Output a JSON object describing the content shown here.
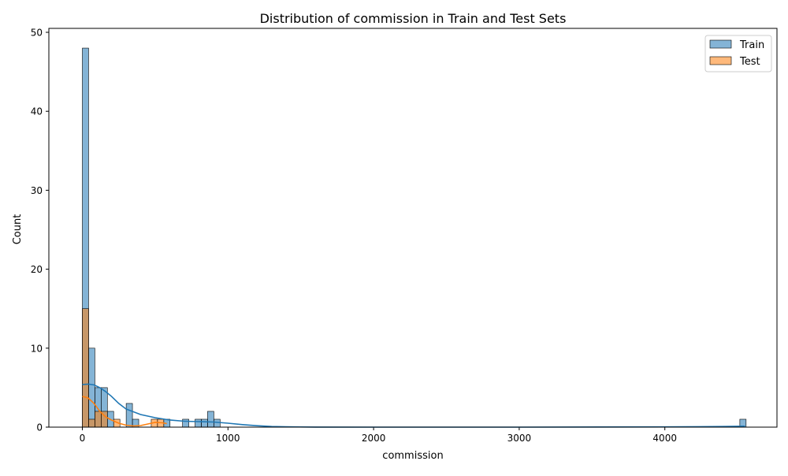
{
  "chart_data": {
    "type": "histogram",
    "title": "Distribution of commission in Train and Test Sets",
    "xlabel": "commission",
    "ylabel": "Count",
    "xlim": [
      -230,
      4770
    ],
    "ylim": [
      0,
      50.5
    ],
    "x_ticks": [
      0,
      1000,
      2000,
      3000,
      4000
    ],
    "y_ticks": [
      0,
      10,
      20,
      30,
      40,
      50
    ],
    "legend_position": "top-right",
    "bin_width": 43,
    "series": [
      {
        "name": "Train",
        "color": "#1f77b4",
        "bins": [
          {
            "x0": 0,
            "x1": 43,
            "count": 48
          },
          {
            "x0": 43,
            "x1": 86,
            "count": 10
          },
          {
            "x0": 86,
            "x1": 129,
            "count": 5
          },
          {
            "x0": 129,
            "x1": 172,
            "count": 5
          },
          {
            "x0": 172,
            "x1": 215,
            "count": 2
          },
          {
            "x0": 301,
            "x1": 344,
            "count": 3
          },
          {
            "x0": 344,
            "x1": 387,
            "count": 1
          },
          {
            "x0": 559,
            "x1": 602,
            "count": 1
          },
          {
            "x0": 688,
            "x1": 731,
            "count": 1
          },
          {
            "x0": 774,
            "x1": 817,
            "count": 1
          },
          {
            "x0": 817,
            "x1": 860,
            "count": 1
          },
          {
            "x0": 860,
            "x1": 903,
            "count": 2
          },
          {
            "x0": 903,
            "x1": 946,
            "count": 1
          },
          {
            "x0": 4515,
            "x1": 4558,
            "count": 1
          }
        ],
        "kde": {
          "x": [
            0,
            40,
            80,
            120,
            160,
            200,
            250,
            300,
            400,
            500,
            600,
            700,
            800,
            900,
            1000,
            1100,
            1200,
            1300,
            1400,
            1600,
            2000,
            3000,
            4000,
            4400,
            4550
          ],
          "y": [
            5.4,
            5.45,
            5.35,
            5.0,
            4.5,
            3.9,
            3.0,
            2.3,
            1.6,
            1.2,
            0.9,
            0.75,
            0.7,
            0.65,
            0.5,
            0.32,
            0.18,
            0.08,
            0.04,
            0.01,
            0.0,
            0.0,
            0.03,
            0.08,
            0.12
          ]
        }
      },
      {
        "name": "Test",
        "color": "#ff7f0e",
        "bins": [
          {
            "x0": 0,
            "x1": 43,
            "count": 15
          },
          {
            "x0": 43,
            "x1": 86,
            "count": 1
          },
          {
            "x0": 86,
            "x1": 129,
            "count": 2
          },
          {
            "x0": 129,
            "x1": 172,
            "count": 2
          },
          {
            "x0": 215,
            "x1": 258,
            "count": 1
          },
          {
            "x0": 473,
            "x1": 516,
            "count": 1
          },
          {
            "x0": 516,
            "x1": 559,
            "count": 1
          }
        ],
        "kde": {
          "x": [
            0,
            40,
            80,
            120,
            160,
            200,
            250,
            300,
            350,
            400,
            450,
            500,
            550,
            580
          ],
          "y": [
            3.9,
            3.7,
            3.0,
            2.0,
            1.3,
            0.9,
            0.5,
            0.25,
            0.15,
            0.2,
            0.4,
            0.6,
            0.55,
            0.45
          ]
        }
      }
    ]
  }
}
